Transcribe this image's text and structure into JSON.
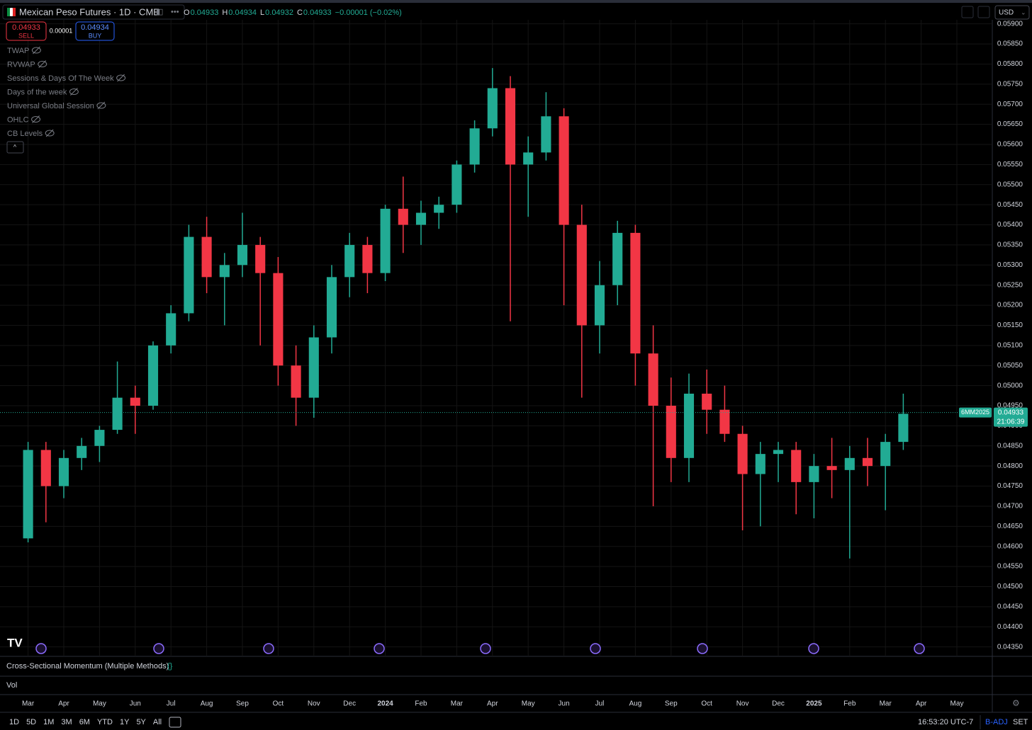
{
  "header": {
    "title": "Mexican Peso Futures · 1D · CME",
    "ohlc": [
      {
        "key": "O",
        "value": "0.04933"
      },
      {
        "key": "H",
        "value": "0.04934"
      },
      {
        "key": "L",
        "value": "0.04932"
      },
      {
        "key": "C",
        "value": "0.04933"
      }
    ],
    "change": "−0.00001 (−0.02%)",
    "currency": "USD"
  },
  "trade": {
    "sell_price": "0.04933",
    "sell": "SELL",
    "spread": "0.00001",
    "buy_price": "0.04934",
    "buy": "BUY"
  },
  "indicators": [
    "TWAP",
    "RVWAP",
    "Sessions & Days Of The Week",
    "Days of the week",
    "Universal Global Session",
    "OHLC",
    "CB Levels"
  ],
  "panes": [
    "Cross-Sectional Momentum (Multiple Methods)",
    "Vol"
  ],
  "last_price": {
    "symbol": "6MM2025",
    "price_label": "0.04933",
    "price": 0.04933,
    "countdown": "21:06:39"
  },
  "toolbar": {
    "ranges": [
      "1D",
      "5D",
      "1M",
      "3M",
      "6M",
      "YTD",
      "1Y",
      "5Y",
      "All"
    ],
    "clock": "16:53:20 UTC-7",
    "adj": "B-ADJ",
    "set": "SET"
  },
  "chart_data": {
    "type": "candlestick",
    "up_color": "#22ab94",
    "down_color": "#f23645",
    "grid": true,
    "categories": [
      "Mar",
      null,
      "Apr",
      null,
      "May",
      null,
      "Jun",
      null,
      "Jul",
      null,
      "Aug",
      null,
      "Sep",
      null,
      "Oct",
      null,
      "Nov",
      null,
      "Dec",
      null,
      "2024",
      null,
      "Feb",
      null,
      "Mar",
      null,
      "Apr",
      null,
      "May",
      null,
      "Jun",
      null,
      "Jul",
      null,
      "Aug",
      null,
      "Sep",
      null,
      "Oct",
      null,
      "Nov",
      null,
      "Dec",
      null,
      "2025",
      null,
      "Feb",
      null,
      "Mar",
      null,
      "Apr",
      null,
      "May",
      null
    ],
    "open": [
      0.0462,
      0.0484,
      0.0475,
      0.0482,
      0.0485,
      0.0489,
      0.0497,
      0.0495,
      0.051,
      0.0518,
      0.0537,
      0.0527,
      0.053,
      0.0535,
      0.0528,
      0.0505,
      0.0497,
      0.0512,
      0.0527,
      0.0535,
      0.0528,
      0.0544,
      0.054,
      0.0543,
      0.0545,
      0.0555,
      0.0564,
      0.0574,
      0.0555,
      0.0558,
      0.0567,
      0.054,
      0.0515,
      0.0525,
      0.0538,
      0.0508,
      0.0495,
      0.0482,
      0.0498,
      0.0494,
      0.0488,
      0.0478,
      0.0483,
      0.0484,
      0.0476,
      0.048,
      0.0479,
      0.0482,
      0.048,
      0.0486,
      null,
      null,
      null,
      null
    ],
    "high": [
      0.0486,
      0.0486,
      0.0484,
      0.0487,
      0.049,
      0.0506,
      0.05,
      0.0511,
      0.052,
      0.054,
      0.0542,
      0.0533,
      0.0543,
      0.0537,
      0.0532,
      0.051,
      0.0515,
      0.053,
      0.0538,
      0.0537,
      0.0545,
      0.0552,
      0.0546,
      0.0547,
      0.0556,
      0.0566,
      0.0579,
      0.0577,
      0.0562,
      0.0573,
      0.0569,
      0.0545,
      0.0531,
      0.0541,
      0.054,
      0.0515,
      0.0502,
      0.0503,
      0.0504,
      0.05,
      0.049,
      0.0486,
      0.0486,
      0.0486,
      0.0483,
      0.0487,
      0.0485,
      0.0487,
      0.0488,
      0.0498,
      null,
      null,
      null,
      null
    ],
    "low": [
      0.0461,
      0.0466,
      0.0472,
      0.0479,
      0.0481,
      0.0488,
      0.0488,
      0.0494,
      0.0508,
      0.0516,
      0.0523,
      0.0515,
      0.0527,
      0.051,
      0.05,
      0.049,
      0.0492,
      0.0508,
      0.0522,
      0.0523,
      0.0526,
      0.0533,
      0.0535,
      0.0539,
      0.0543,
      0.0553,
      0.0562,
      0.0516,
      0.0542,
      0.0556,
      0.052,
      0.0497,
      0.0508,
      0.052,
      0.05,
      0.047,
      0.0476,
      0.0476,
      0.0488,
      0.0486,
      0.0464,
      0.0465,
      0.0476,
      0.0468,
      0.0467,
      0.0472,
      0.0457,
      0.0475,
      0.0469,
      0.0484,
      null,
      null,
      null,
      null
    ],
    "close": [
      0.0484,
      0.0475,
      0.0482,
      0.0485,
      0.0489,
      0.0497,
      0.0495,
      0.051,
      0.0518,
      0.0537,
      0.0527,
      0.053,
      0.0535,
      0.0528,
      0.0505,
      0.0497,
      0.0512,
      0.0527,
      0.0535,
      0.0528,
      0.0544,
      0.054,
      0.0543,
      0.0545,
      0.0555,
      0.0564,
      0.0574,
      0.0555,
      0.0558,
      0.0567,
      0.054,
      0.0515,
      0.0525,
      0.0538,
      0.0508,
      0.0495,
      0.0482,
      0.0498,
      0.0494,
      0.0488,
      0.0478,
      0.0483,
      0.0484,
      0.0476,
      0.048,
      0.0479,
      0.0482,
      0.048,
      0.0486,
      0.0493,
      null,
      null,
      null,
      null
    ],
    "ylim": [
      0.0433,
      0.0591
    ],
    "yticks": [
      {
        "value": 0.0435,
        "label": "0.04350"
      },
      {
        "value": 0.044,
        "label": "0.04400"
      },
      {
        "value": 0.0445,
        "label": "0.04450"
      },
      {
        "value": 0.045,
        "label": "0.04500"
      },
      {
        "value": 0.0455,
        "label": "0.04550"
      },
      {
        "value": 0.046,
        "label": "0.04600"
      },
      {
        "value": 0.0465,
        "label": "0.04650"
      },
      {
        "value": 0.047,
        "label": "0.04700"
      },
      {
        "value": 0.0475,
        "label": "0.04750"
      },
      {
        "value": 0.048,
        "label": "0.04800"
      },
      {
        "value": 0.0485,
        "label": "0.04850"
      },
      {
        "value": 0.049,
        "label": "0.04900"
      },
      {
        "value": 0.0495,
        "label": "0.04950"
      },
      {
        "value": 0.05,
        "label": "0.05000"
      },
      {
        "value": 0.0505,
        "label": "0.05050"
      },
      {
        "value": 0.051,
        "label": "0.05100"
      },
      {
        "value": 0.0515,
        "label": "0.05150"
      },
      {
        "value": 0.052,
        "label": "0.05200"
      },
      {
        "value": 0.0525,
        "label": "0.05250"
      },
      {
        "value": 0.053,
        "label": "0.05300"
      },
      {
        "value": 0.0535,
        "label": "0.05350"
      },
      {
        "value": 0.054,
        "label": "0.05400"
      },
      {
        "value": 0.0545,
        "label": "0.05450"
      },
      {
        "value": 0.055,
        "label": "0.05500"
      },
      {
        "value": 0.0555,
        "label": "0.05550"
      },
      {
        "value": 0.056,
        "label": "0.05600"
      },
      {
        "value": 0.0565,
        "label": "0.05650"
      },
      {
        "value": 0.057,
        "label": "0.05700"
      },
      {
        "value": 0.0575,
        "label": "0.05750"
      },
      {
        "value": 0.058,
        "label": "0.05800"
      },
      {
        "value": 0.0585,
        "label": "0.05850"
      },
      {
        "value": 0.059,
        "label": "0.05900"
      }
    ]
  }
}
